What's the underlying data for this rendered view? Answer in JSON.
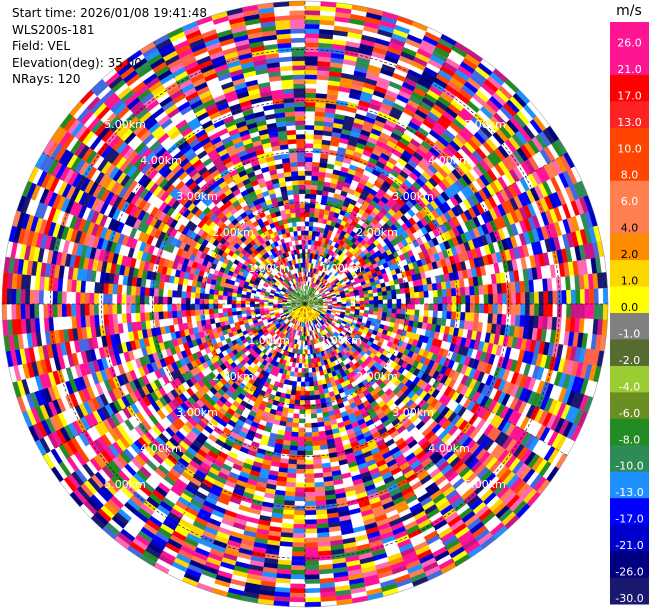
{
  "header": {
    "start_time": "Start time: 2026/01/08 19:41:48",
    "instrument": "WLS200s-181",
    "field": "Field: VEL",
    "elevation": "Elevation(deg): 35.00",
    "nrays": "NRays: 120"
  },
  "chart_data": {
    "type": "heatmap",
    "projection": "polar (PPI)",
    "n_rays": 120,
    "elevation_deg": 35.0,
    "range_rings": [
      "1.00km",
      "2.00km",
      "3.00km",
      "4.00km",
      "5.00km"
    ],
    "colorbar": {
      "unit": "m/s",
      "ticks": [
        "26.0",
        "21.0",
        "17.0",
        "13.0",
        "10.0",
        "8.0",
        "6.0",
        "4.0",
        "2.0",
        "1.0",
        "0.0",
        "-1.0",
        "-2.0",
        "-4.0",
        "-6.0",
        "-8.0",
        "-10.0",
        "-13.0",
        "-17.0",
        "-21.0",
        "-26.0",
        "-30.0"
      ],
      "colors": [
        "#ff1493",
        "#ff1493",
        "#ff0000",
        "#ff2222",
        "#ff4500",
        "#ff4500",
        "#ff7f50",
        "#ff7f50",
        "#ff8c00",
        "#ffd700",
        "#ffff00",
        "#808080",
        "#556b2f",
        "#9acd32",
        "#6b8e23",
        "#228b22",
        "#2e8b57",
        "#1e90ff",
        "#0000ff",
        "#0000cd",
        "#000080",
        "#191970"
      ]
    }
  }
}
